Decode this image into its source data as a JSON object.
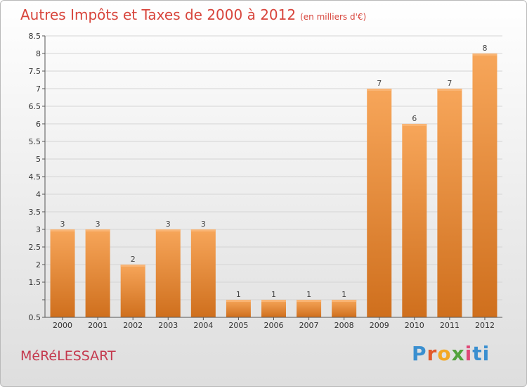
{
  "chart_data": {
    "type": "bar",
    "title": "Autres Impôts et Taxes de 2000 à 2012",
    "unit_label": "(en milliers d'€)",
    "categories": [
      "2000",
      "2001",
      "2002",
      "2003",
      "2004",
      "2005",
      "2006",
      "2007",
      "2008",
      "2009",
      "2010",
      "2011",
      "2012"
    ],
    "values": [
      3,
      3,
      2,
      3,
      3,
      1,
      1,
      1,
      1,
      7,
      6,
      7,
      8
    ],
    "data_labels": [
      "3",
      "3",
      "2",
      "3",
      "3",
      "1",
      "1",
      "1",
      "1",
      "7",
      "6",
      "7",
      "8"
    ],
    "yticks": [
      "0.5",
      "",
      "1.5",
      "2",
      "2.5",
      "3",
      "3.5",
      "4",
      "4.5",
      "5",
      "5.5",
      "6",
      "6.5",
      "7",
      "7.5",
      "8",
      "8.5"
    ],
    "ylim": [
      0.5,
      8.5
    ],
    "bar_color": "#f0923a",
    "grid": true
  },
  "footer": {
    "city": "MéRéLESSART",
    "logo_letters": [
      "P",
      "r",
      "o",
      "x",
      "i",
      "ti"
    ]
  }
}
